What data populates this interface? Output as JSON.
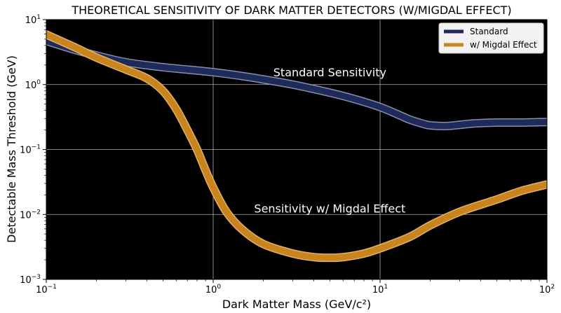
{
  "chart_data": {
    "type": "line",
    "title": "THEORETICAL SENSITIVITY OF DARK MATTER DETECTORS (W/MIGDAL EFFECT)",
    "xlabel": "Dark Matter Mass (GeV/c²)",
    "ylabel": "Detectable Mass Threshold (GeV)",
    "xscale": "log",
    "yscale": "log",
    "xlim": [
      0.1,
      100
    ],
    "ylim": [
      0.001,
      10
    ],
    "grid": true,
    "background": "#000000",
    "x_ticks": [
      {
        "value": 0.1,
        "base": "10",
        "exp": "−1"
      },
      {
        "value": 1,
        "base": "10",
        "exp": "0"
      },
      {
        "value": 10,
        "base": "10",
        "exp": "1"
      },
      {
        "value": 100,
        "base": "10",
        "exp": "2"
      }
    ],
    "y_ticks": [
      {
        "value": 0.001,
        "base": "10",
        "exp": "−3"
      },
      {
        "value": 0.01,
        "base": "10",
        "exp": "−2"
      },
      {
        "value": 0.1,
        "base": "10",
        "exp": "−1"
      },
      {
        "value": 1,
        "base": "10",
        "exp": "0"
      },
      {
        "value": 10,
        "base": "10",
        "exp": "1"
      }
    ],
    "legend": {
      "position": "top-right",
      "entries": [
        "Standard",
        "w/ Migdal Effect"
      ]
    },
    "series": [
      {
        "name": "Standard",
        "color": "#1f2a5c",
        "edge_color": "#8a8fa8",
        "x": [
          0.1,
          0.15,
          0.2,
          0.3,
          0.5,
          0.7,
          1,
          1.5,
          2,
          3,
          5,
          7,
          10,
          13,
          15,
          18,
          20,
          25,
          30,
          35,
          40,
          50,
          70,
          100
        ],
        "y": [
          4.7,
          3.4,
          2.8,
          2.2,
          1.85,
          1.7,
          1.55,
          1.35,
          1.2,
          1.0,
          0.75,
          0.6,
          0.45,
          0.34,
          0.29,
          0.25,
          0.235,
          0.23,
          0.24,
          0.25,
          0.255,
          0.26,
          0.26,
          0.265
        ]
      },
      {
        "name": "w/ Migdal Effect",
        "color": "#c8841e",
        "edge_color": "#e8b060",
        "x": [
          0.1,
          0.15,
          0.2,
          0.3,
          0.4,
          0.5,
          0.6,
          0.7,
          0.8,
          0.9,
          1,
          1.2,
          1.5,
          2,
          3,
          4,
          5,
          6,
          8,
          10,
          15,
          20,
          30,
          50,
          70,
          100
        ],
        "y": [
          5.9,
          3.7,
          2.6,
          1.7,
          1.25,
          0.8,
          0.42,
          0.2,
          0.1,
          0.048,
          0.026,
          0.011,
          0.0058,
          0.0035,
          0.0025,
          0.0022,
          0.00215,
          0.0022,
          0.0025,
          0.003,
          0.0045,
          0.0068,
          0.011,
          0.017,
          0.023,
          0.029
        ]
      }
    ],
    "annotations": [
      {
        "text": "Standard Sensitivity",
        "x": 5,
        "y": 1.5
      },
      {
        "text": "Sensitivity w/ Migdal Effect",
        "x": 5,
        "y": 0.012
      }
    ]
  }
}
